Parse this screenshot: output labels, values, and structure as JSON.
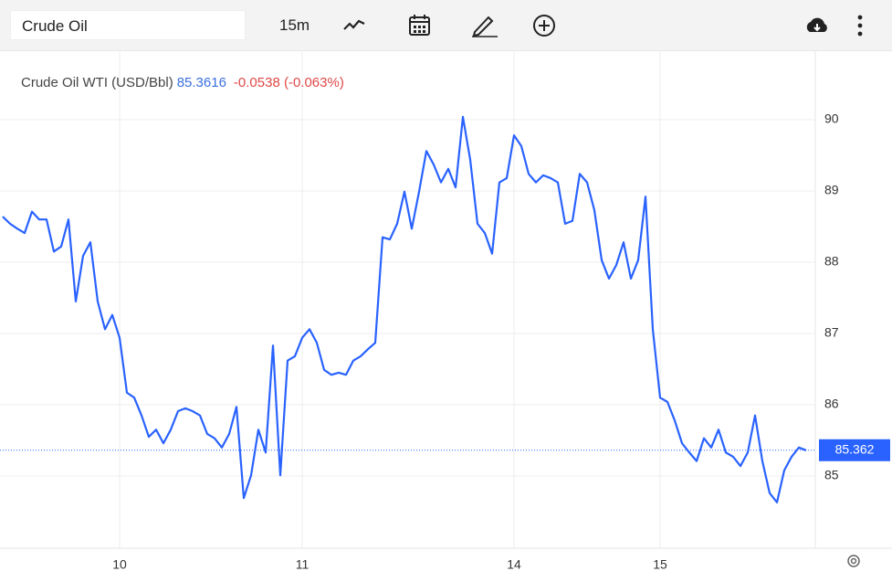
{
  "toolbar": {
    "symbol": "Crude Oil",
    "interval": "15m"
  },
  "quote": {
    "last": "85.3616",
    "change": "-0.0538 (-0.063%)"
  },
  "chart_data": {
    "type": "line",
    "categories": [
      null,
      null,
      null,
      null,
      null,
      null,
      null,
      null,
      null,
      null,
      null,
      null,
      null,
      null,
      null,
      null,
      "10",
      null,
      null,
      null,
      null,
      null,
      null,
      null,
      null,
      null,
      null,
      null,
      null,
      null,
      null,
      null,
      null,
      null,
      null,
      null,
      null,
      null,
      null,
      null,
      null,
      "11",
      null,
      null,
      null,
      null,
      null,
      null,
      null,
      null,
      null,
      null,
      null,
      null,
      null,
      null,
      null,
      null,
      null,
      null,
      null,
      null,
      null,
      null,
      null,
      null,
      null,
      null,
      null,
      null,
      "14",
      null,
      null,
      null,
      null,
      null,
      null,
      null,
      null,
      null,
      null,
      null,
      null,
      null,
      null,
      null,
      null,
      null,
      null,
      null,
      "15",
      null,
      null,
      null,
      null,
      null,
      null,
      null,
      null,
      null,
      null,
      null,
      null,
      null,
      null,
      null,
      null,
      null,
      null,
      null,
      null
    ],
    "series": [
      {
        "name": "Crude Oil WTI (USD/Bbl)",
        "color": "#2962ff",
        "values": [
          88.64,
          88.54,
          88.47,
          88.41,
          88.71,
          88.6,
          88.6,
          88.15,
          88.22,
          88.6,
          87.45,
          88.09,
          88.28,
          87.45,
          87.06,
          87.26,
          86.94,
          86.17,
          86.1,
          85.85,
          85.55,
          85.65,
          85.46,
          85.65,
          85.91,
          85.95,
          85.91,
          85.85,
          85.59,
          85.53,
          85.4,
          85.59,
          85.97,
          84.69,
          85.01,
          85.65,
          85.33,
          86.83,
          85.01,
          86.62,
          86.68,
          86.94,
          87.06,
          86.87,
          86.49,
          86.42,
          86.45,
          86.42,
          86.62,
          86.68,
          86.78,
          86.87,
          88.35,
          88.32,
          88.54,
          88.99,
          88.47,
          88.99,
          89.56,
          89.37,
          89.12,
          89.31,
          89.05,
          90.04,
          89.44,
          88.54,
          88.41,
          88.12,
          89.12,
          89.18,
          89.78,
          89.63,
          89.24,
          89.12,
          89.22,
          89.18,
          89.12,
          88.54,
          88.58,
          89.24,
          89.12,
          88.73,
          88.03,
          87.77,
          87.96,
          88.28,
          87.77,
          88.03,
          88.92,
          87.06,
          86.1,
          86.04,
          85.78,
          85.46,
          85.33,
          85.21,
          85.53,
          85.4,
          85.65,
          85.33,
          85.27,
          85.14,
          85.33,
          85.85,
          85.21,
          84.76,
          84.63,
          85.08,
          85.27,
          85.4,
          85.36
        ]
      }
    ],
    "ylim": [
      84,
      91
    ],
    "yticks": [
      85,
      86,
      87,
      88,
      89,
      90
    ],
    "grid": true,
    "last_price": 85.362
  }
}
